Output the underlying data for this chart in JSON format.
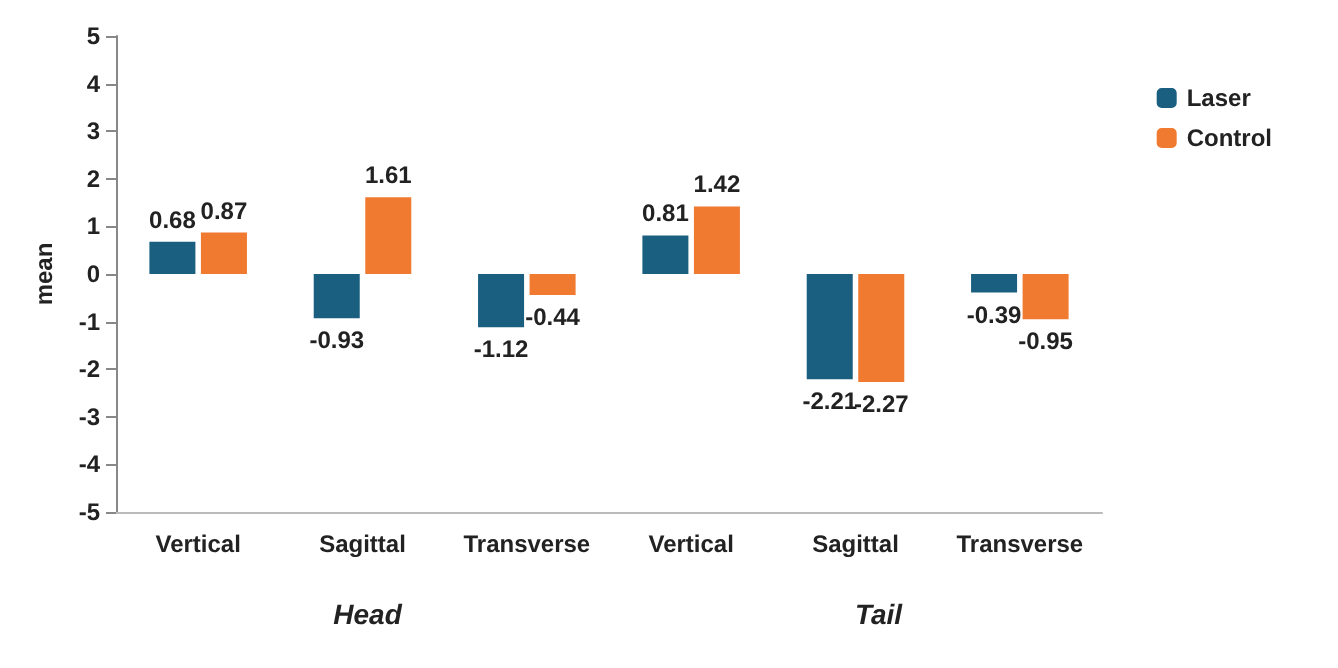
{
  "chart_data": {
    "type": "bar",
    "ylabel": "mean",
    "categories": [
      "Vertical",
      "Sagittal",
      "Transverse",
      "Vertical",
      "Sagittal",
      "Transverse"
    ],
    "series": [
      {
        "name": "Laser",
        "color": "#1a5e80",
        "values": [
          0.68,
          -0.93,
          -1.12,
          0.81,
          -2.21,
          -0.39
        ]
      },
      {
        "name": "Control",
        "color": "#f07a30",
        "values": [
          0.87,
          1.61,
          -0.44,
          1.42,
          -2.27,
          -0.95
        ]
      }
    ],
    "ylim": [
      -5,
      5
    ],
    "yticks": [
      -5,
      -4,
      -3,
      -2,
      -1,
      0,
      1,
      2,
      3,
      4,
      5
    ],
    "grid": false,
    "legend": "top right",
    "data_labels": true,
    "annotations": [
      "Head",
      "Tail"
    ]
  }
}
